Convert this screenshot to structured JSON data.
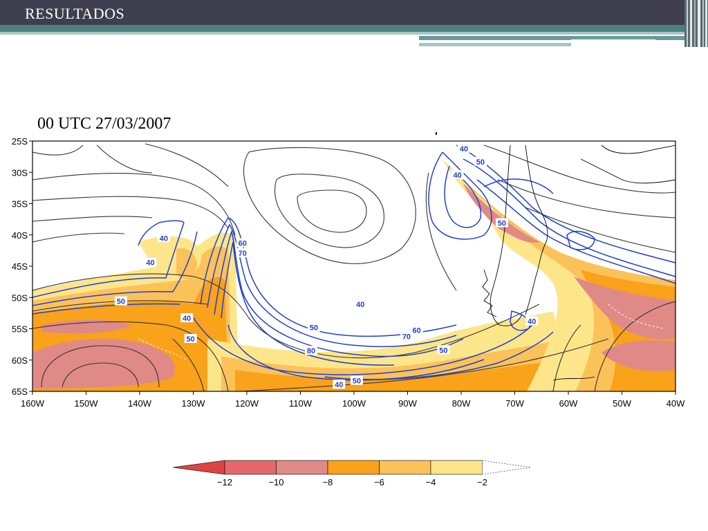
{
  "header": {
    "title": "RESULTADOS"
  },
  "figure": {
    "timestamp": "00 UTC 27/03/2007"
  },
  "map": {
    "lat_labels": [
      "25S",
      "30S",
      "35S",
      "40S",
      "45S",
      "50S",
      "55S",
      "60S",
      "65S"
    ],
    "lon_labels": [
      "160W",
      "150W",
      "140W",
      "130W",
      "120W",
      "110W",
      "100W",
      "90W",
      "80W",
      "70W",
      "60W",
      "50W",
      "40W"
    ],
    "lat_range": [
      -65,
      -25
    ],
    "lon_range": [
      -160,
      -40
    ],
    "contour_labels": [
      {
        "text": "40",
        "lon": -135.5,
        "lat": -40.5
      },
      {
        "text": "40",
        "lon": -138,
        "lat": -44.4
      },
      {
        "text": "50",
        "lon": -143.5,
        "lat": -50.6
      },
      {
        "text": "40",
        "lon": -131.2,
        "lat": -53.3
      },
      {
        "text": "50",
        "lon": -130.5,
        "lat": -56.6
      },
      {
        "text": "60",
        "lon": -120.8,
        "lat": -41.3
      },
      {
        "text": "70",
        "lon": -120.8,
        "lat": -42.9
      },
      {
        "text": "40",
        "lon": -98.8,
        "lat": -51.1
      },
      {
        "text": "50",
        "lon": -107.5,
        "lat": -54.8
      },
      {
        "text": "80",
        "lon": -108,
        "lat": -58.5
      },
      {
        "text": "60",
        "lon": -88.3,
        "lat": -55.2
      },
      {
        "text": "70",
        "lon": -90.2,
        "lat": -56.2
      },
      {
        "text": "50",
        "lon": -83.3,
        "lat": -58.4
      },
      {
        "text": "40",
        "lon": -102.8,
        "lat": -63.9
      },
      {
        "text": "50",
        "lon": -99.5,
        "lat": -63.3
      },
      {
        "text": "40",
        "lon": -66.8,
        "lat": -53.8
      },
      {
        "text": "40",
        "lon": -79.5,
        "lat": -26.2
      },
      {
        "text": "50",
        "lon": -76.4,
        "lat": -28.3
      },
      {
        "text": "40",
        "lon": -80.7,
        "lat": -30.4
      },
      {
        "text": "50",
        "lon": -72.4,
        "lat": -38.1
      }
    ],
    "colors": {
      "shade_m2": "#fde68a",
      "shade_m4": "#fcc25a",
      "shade_m6": "#f9a21a",
      "shade_m8": "#e08a87",
      "shade_m10": "#e5696a",
      "shade_m12": "#dc4444",
      "jet_contour": "#1f3fd0",
      "streamline": "#333333"
    }
  },
  "legend": {
    "labels": [
      "−12",
      "−10",
      "−8",
      "−6",
      "−4",
      "−2"
    ],
    "colors": [
      "#dc4444",
      "#e5696a",
      "#e08a87",
      "#f9a21a",
      "#fcc25a",
      "#fde68a"
    ]
  }
}
